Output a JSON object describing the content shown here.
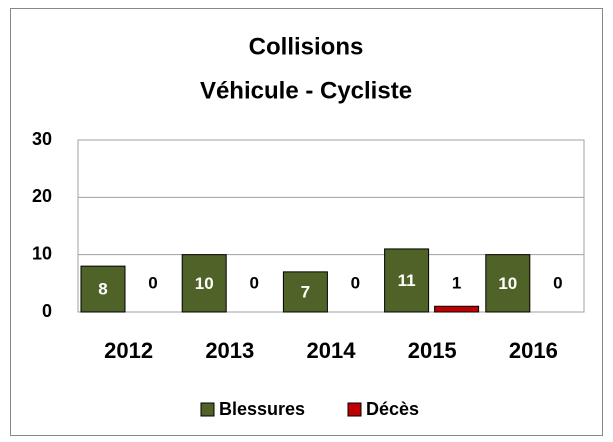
{
  "chart_data": {
    "type": "bar",
    "title": "Collisions",
    "subtitle": "Véhicule - Cycliste",
    "categories": [
      "2012",
      "2013",
      "2014",
      "2015",
      "2016"
    ],
    "series": [
      {
        "name": "Blessures",
        "color": "#4f6228",
        "values": [
          8,
          10,
          7,
          11,
          10
        ]
      },
      {
        "name": "Décès",
        "color": "#c00000",
        "values": [
          0,
          0,
          0,
          1,
          0
        ]
      }
    ],
    "ylim": [
      0,
      30
    ],
    "yticks": [
      0,
      10,
      20,
      30
    ],
    "grid": true,
    "legend": "bottom"
  }
}
